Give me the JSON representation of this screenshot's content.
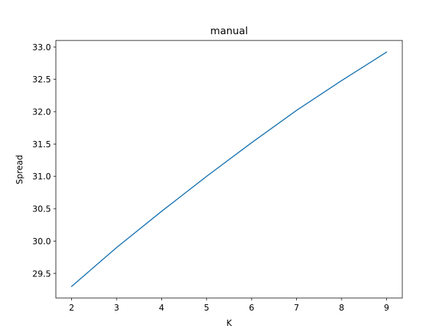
{
  "chart_data": {
    "type": "line",
    "title": "manual",
    "xlabel": "K",
    "ylabel": "Spread",
    "x": [
      2,
      3,
      4,
      5,
      6,
      7,
      8,
      9
    ],
    "xticks": [
      2,
      3,
      4,
      5,
      6,
      7,
      8,
      9
    ],
    "yticks": [
      "29.5",
      "30.0",
      "30.5",
      "31.0",
      "31.5",
      "32.0",
      "32.5",
      "33.0"
    ],
    "xlim": [
      1.65,
      9.35
    ],
    "ylim": [
      29.12,
      33.1
    ],
    "grid": false,
    "series": [
      {
        "color": "#1f77b4",
        "values": [
          29.3,
          29.9,
          30.46,
          31.0,
          31.52,
          32.02,
          32.48,
          32.92
        ]
      }
    ]
  }
}
